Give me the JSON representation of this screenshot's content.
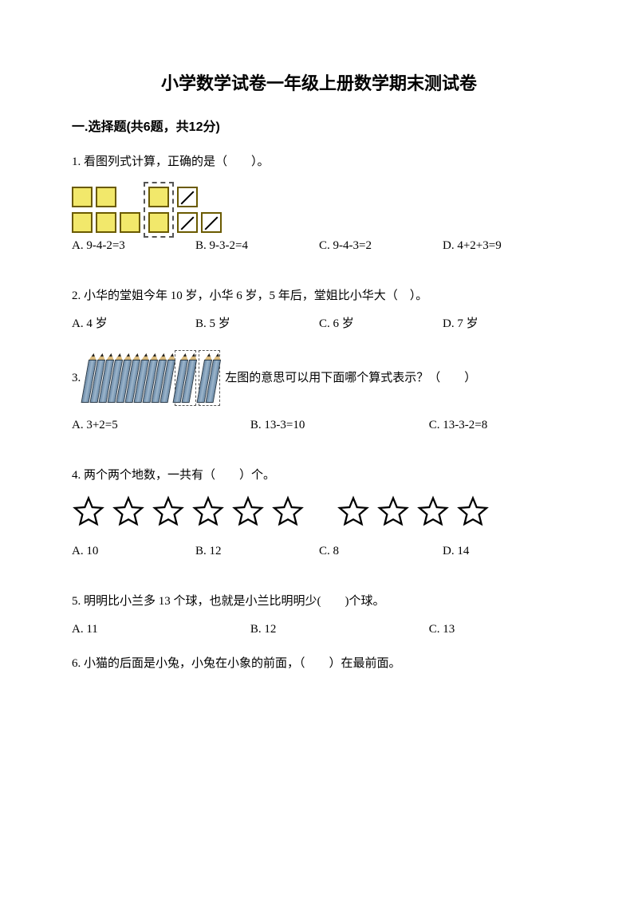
{
  "title": "小学数学试卷一年级上册数学期末测试卷",
  "section1": "一.选择题(共6题，共12分)",
  "q1": {
    "text": "1. 看图列式计算，正确的是（　　）。",
    "figure": {
      "row1": {
        "yellow": 2,
        "dashedYellow": 2,
        "crossed": 1
      },
      "row2": {
        "yellow": 3,
        "crossed": 2
      },
      "colors": {
        "yellow": "#f2e86b",
        "border": "#6a5a00",
        "dash": "#555555"
      }
    },
    "opts": {
      "a": "A. 9-4-2=3",
      "b": "B. 9-3-2=4",
      "c": "C. 9-4-3=2",
      "d": "D. 4+2+3=9"
    }
  },
  "q2": {
    "text": "2. 小华的堂姐今年 10 岁，小华 6 岁，5 年后，堂姐比小华大（　）。",
    "opts": {
      "a": "A. 4 岁",
      "b": "B. 5 岁",
      "c": "C. 6 岁",
      "d": "D. 7 岁"
    }
  },
  "q3": {
    "num": "3.",
    "figure": {
      "solid": 10,
      "dashedGroups": [
        2,
        2
      ],
      "colors": {
        "body": "#7d9ab3",
        "outline": "#2a3a48",
        "tip": "#d8b87a"
      }
    },
    "text": "左图的意思可以用下面哪个算式表示？（　　）",
    "opts": {
      "a": "A. 3+2=5",
      "b": "B. 13-3=10",
      "c": "C. 13-3-2=8"
    }
  },
  "q4": {
    "text": "4. 两个两个地数，一共有（　　）个。",
    "figure": {
      "group1": 6,
      "group2": 4,
      "color": "#000000"
    },
    "opts": {
      "a": "A. 10",
      "b": "B. 12",
      "c": "C. 8",
      "d": "D. 14"
    }
  },
  "q5": {
    "text": "5. 明明比小兰多 13 个球，也就是小兰比明明少(　　)个球。",
    "opts": {
      "a": "A. 11",
      "b": "B. 12",
      "c": "C. 13"
    }
  },
  "q6": {
    "text": "6. 小猫的后面是小兔，小兔在小象的前面，（　　）在最前面。"
  }
}
